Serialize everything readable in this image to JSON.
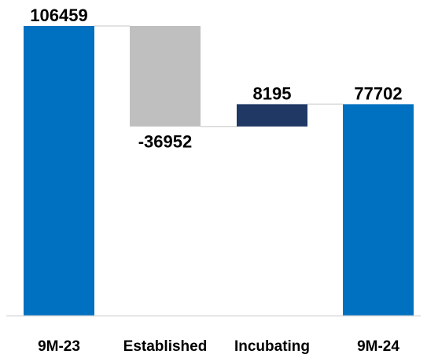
{
  "chart_data": {
    "type": "bar",
    "subtype": "waterfall",
    "categories": [
      "9M-23",
      "Established",
      "Incubating",
      "9M-24"
    ],
    "values": [
      106459,
      -36952,
      8195,
      77702
    ],
    "data_labels": [
      "106459",
      "-36952",
      "8195",
      "77702"
    ],
    "bar_kinds": [
      "total",
      "delta",
      "delta",
      "total"
    ],
    "ylim": [
      0,
      106459
    ],
    "grid": false,
    "legend": "none",
    "connectors": true,
    "colors": {
      "total": "#0070c0",
      "decrease": "#bfbfbf",
      "increase": "#1f3864",
      "connector": "#d9d9d9",
      "baseline": "#d9d9d9"
    }
  }
}
